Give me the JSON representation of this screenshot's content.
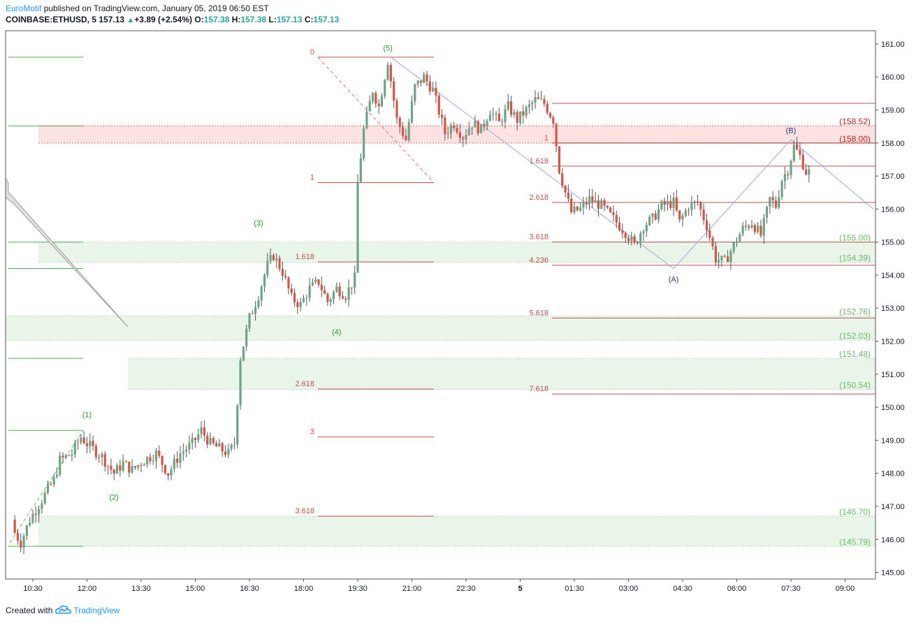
{
  "header": {
    "author": "EuroMotif",
    "published": " published on TradingView.com, January 05, 2019 06:50 EST",
    "symbol": "COINBASE:ETHUSD, 5",
    "price": "157.13",
    "change_arrow": "▲",
    "change": "+3.89 (+2.54%)",
    "open_label": "O:",
    "open": "157.38",
    "high_label": "H:",
    "high": "157.38",
    "low_label": "L:",
    "low": "157.13",
    "close_label": "C:",
    "close": "157.13"
  },
  "footer": {
    "created_with": "Created with",
    "brand": "TradingView",
    "logo_icon": "tradingview-cloud-icon"
  },
  "colors": {
    "bull": "#6ba583",
    "bear": "#d75442",
    "fib": "#c0504d",
    "wave": "#388e3c",
    "zone_red": "#fde2e2",
    "zone_green": "#eaf5ea",
    "pitch": "#9fa8da"
  },
  "chart_data": {
    "type": "candlestick",
    "x_ticks": [
      "10:30",
      "12:00",
      "13:30",
      "15:00",
      "16:30",
      "18:00",
      "19:30",
      "21:00",
      "22:30",
      "5",
      "01:30",
      "03:00",
      "04:30",
      "06:00",
      "07:30",
      "09:00"
    ],
    "ylim": [
      144.8,
      161.4
    ],
    "y_ticks": [
      "145.00",
      "146.00",
      "147.00",
      "148.00",
      "149.00",
      "150.00",
      "151.00",
      "152.00",
      "153.00",
      "154.00",
      "155.00",
      "156.00",
      "157.00",
      "158.00",
      "159.00",
      "160.00",
      "161.00"
    ],
    "price_path": [
      [
        "10:00",
        146.6
      ],
      [
        "10:05",
        146.2
      ],
      [
        "10:15",
        145.9
      ],
      [
        "10:30",
        146.6
      ],
      [
        "10:50",
        147.2
      ],
      [
        "11:10",
        147.8
      ],
      [
        "11:20",
        148.4
      ],
      [
        "11:40",
        148.6
      ],
      [
        "11:55",
        149.1
      ],
      [
        "12:05",
        148.9
      ],
      [
        "12:30",
        148.5
      ],
      [
        "12:50",
        148.0
      ],
      [
        "13:05",
        148.3
      ],
      [
        "13:20",
        148.1
      ],
      [
        "13:40",
        148.4
      ],
      [
        "14:00",
        148.6
      ],
      [
        "14:20",
        148.0
      ],
      [
        "14:40",
        148.6
      ],
      [
        "15:00",
        148.9
      ],
      [
        "15:15",
        149.3
      ],
      [
        "15:30",
        148.9
      ],
      [
        "15:50",
        148.7
      ],
      [
        "16:00",
        148.6
      ],
      [
        "16:10",
        148.9
      ],
      [
        "16:20",
        151.5
      ],
      [
        "16:35",
        152.7
      ],
      [
        "16:50",
        153.4
      ],
      [
        "17:05",
        154.3
      ],
      [
        "17:15",
        154.6
      ],
      [
        "17:30",
        154.1
      ],
      [
        "17:45",
        153.3
      ],
      [
        "18:00",
        153.1
      ],
      [
        "18:15",
        153.6
      ],
      [
        "18:30",
        153.8
      ],
      [
        "18:45",
        153.2
      ],
      [
        "19:00",
        153.6
      ],
      [
        "19:15",
        153.4
      ],
      [
        "19:30",
        153.9
      ],
      [
        "19:35",
        156.8
      ],
      [
        "19:45",
        158.4
      ],
      [
        "20:00",
        159.6
      ],
      [
        "20:10",
        159.1
      ],
      [
        "20:25",
        160.5
      ],
      [
        "20:40",
        158.7
      ],
      [
        "20:55",
        158.1
      ],
      [
        "21:10",
        159.7
      ],
      [
        "21:25",
        160.0
      ],
      [
        "21:40",
        159.6
      ],
      [
        "22:00",
        158.3
      ],
      [
        "22:15",
        158.6
      ],
      [
        "22:30",
        158.2
      ],
      [
        "22:45",
        158.6
      ],
      [
        "23:00",
        158.4
      ],
      [
        "23:15",
        159.0
      ],
      [
        "23:30",
        158.6
      ],
      [
        "23:45",
        159.1
      ],
      [
        "00:00",
        158.7
      ],
      [
        "00:15",
        159.0
      ],
      [
        "00:30",
        159.3
      ],
      [
        "00:45",
        159.2
      ],
      [
        "01:00",
        158.7
      ],
      [
        "01:10",
        157.2
      ],
      [
        "01:20",
        156.5
      ],
      [
        "01:30",
        155.9
      ],
      [
        "01:45",
        156.0
      ],
      [
        "02:00",
        156.3
      ],
      [
        "02:20",
        156.1
      ],
      [
        "02:40",
        155.7
      ],
      [
        "03:00",
        155.3
      ],
      [
        "03:15",
        154.9
      ],
      [
        "03:30",
        155.5
      ],
      [
        "03:45",
        155.7
      ],
      [
        "04:00",
        156.1
      ],
      [
        "04:20",
        156.2
      ],
      [
        "04:30",
        155.6
      ],
      [
        "04:45",
        156.1
      ],
      [
        "05:00",
        156.2
      ],
      [
        "05:15",
        155.5
      ],
      [
        "05:30",
        154.5
      ],
      [
        "05:45",
        154.4
      ],
      [
        "06:00",
        154.9
      ],
      [
        "06:15",
        155.4
      ],
      [
        "06:30",
        155.6
      ],
      [
        "06:45",
        155.2
      ],
      [
        "07:00",
        156.3
      ],
      [
        "07:10",
        156.1
      ],
      [
        "07:20",
        156.9
      ],
      [
        "07:30",
        157.2
      ],
      [
        "07:40",
        157.9
      ],
      [
        "07:50",
        157.6
      ],
      [
        "08:00",
        157.13
      ]
    ],
    "fib_left": [
      {
        "label": "0",
        "value": 160.6
      },
      {
        "label": "1",
        "value": 156.8
      },
      {
        "label": "1.618",
        "value": 154.4
      },
      {
        "label": "2.618",
        "value": 150.55
      },
      {
        "label": "3",
        "value": 149.1
      },
      {
        "label": "3.618",
        "value": 146.7
      }
    ],
    "fib_right": [
      {
        "label": "1",
        "value": 158.0
      },
      {
        "label": "1.618",
        "value": 157.3
      },
      {
        "label": "2.618",
        "value": 156.2
      },
      {
        "label": "3.618",
        "value": 155.0
      },
      {
        "label": "4.236",
        "value": 154.3
      },
      {
        "label": "5.618",
        "value": 152.7
      },
      {
        "label": "7.618",
        "value": 150.4
      }
    ],
    "top_line": 159.2,
    "zone_labels": [
      {
        "label": "(158.52)",
        "value": 158.52,
        "dark": true
      },
      {
        "label": "(158.00)",
        "value": 158.0,
        "dark": true
      },
      {
        "label": "(155.00)",
        "value": 155.0,
        "dark": false
      },
      {
        "label": "(154.39)",
        "value": 154.39,
        "dark": false
      },
      {
        "label": "(152.76)",
        "value": 152.76,
        "dark": false
      },
      {
        "label": "(152.03)",
        "value": 152.03,
        "dark": false
      },
      {
        "label": "(151.48)",
        "value": 151.48,
        "dark": false
      },
      {
        "label": "(150.54)",
        "value": 150.54,
        "dark": false
      },
      {
        "label": "(146.70)",
        "value": 146.7,
        "dark": false
      },
      {
        "label": "(145.79)",
        "value": 145.79,
        "dark": false
      }
    ],
    "wave_labels": [
      {
        "label": "(1)",
        "time": "12:00",
        "value": 149.7
      },
      {
        "label": "(2)",
        "time": "12:45",
        "value": 147.2
      },
      {
        "label": "(3)",
        "time": "16:45",
        "value": 155.5
      },
      {
        "label": "(4)",
        "time": "18:55",
        "value": 152.2
      },
      {
        "label": "(5)",
        "time": "20:20",
        "value": 160.8
      },
      {
        "label": "(A)",
        "time": "04:15",
        "value": 153.8
      },
      {
        "label": "(B)",
        "time": "07:30",
        "value": 158.3
      }
    ]
  }
}
